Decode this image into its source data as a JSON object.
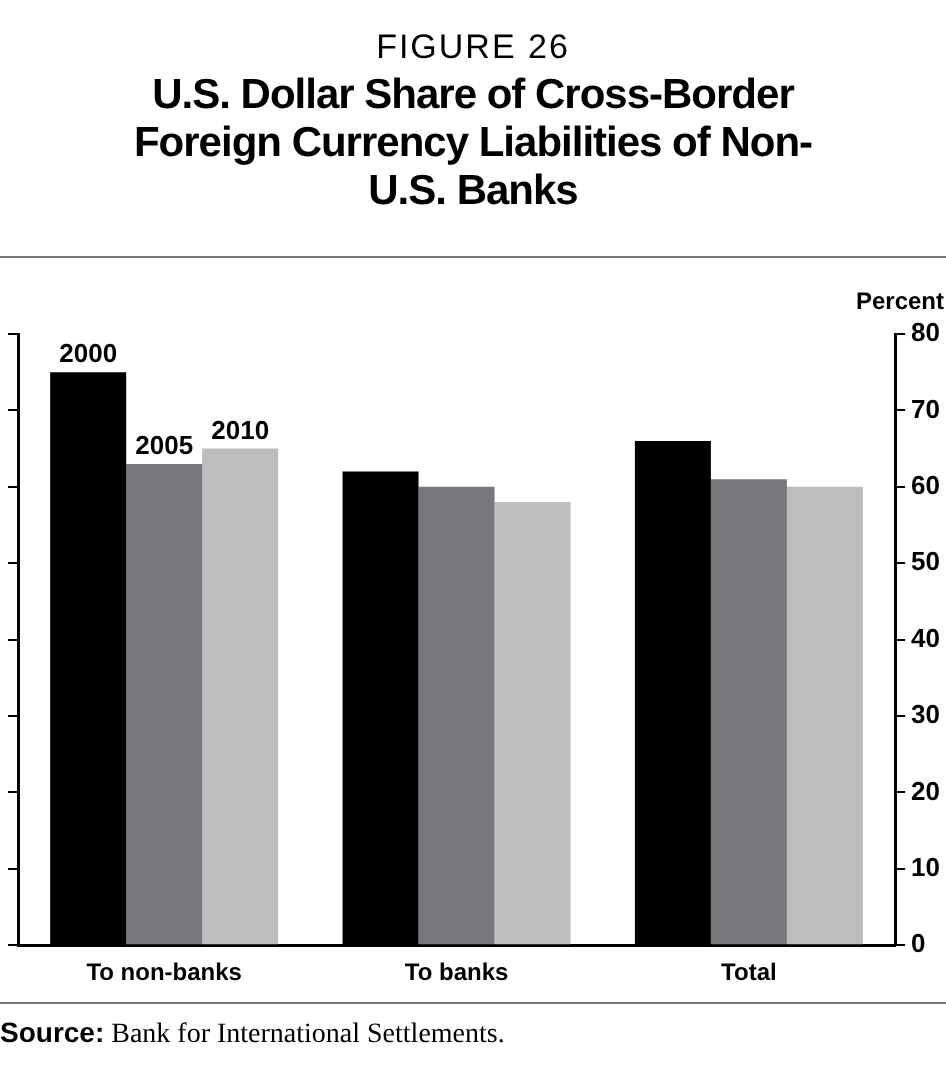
{
  "chart_data": {
    "type": "bar",
    "subtitle": "FIGURE 26",
    "title": "U.S. Dollar Share of Cross-Border Foreign Currency Liabilities of Non-U.S. Banks",
    "ylabel": "Percent",
    "categories": [
      "To non-banks",
      "To banks",
      "Total"
    ],
    "series": [
      {
        "name": "2000",
        "color": "#000000",
        "values": [
          75,
          62,
          66
        ]
      },
      {
        "name": "2005",
        "color": "#77787b",
        "values": [
          63,
          60,
          61
        ]
      },
      {
        "name": "2010",
        "color": "#bcbdbf",
        "values": [
          65,
          58,
          60
        ]
      }
    ],
    "ylim": [
      0,
      80
    ],
    "yticks": [
      0,
      10,
      20,
      30,
      40,
      50,
      60,
      70,
      80
    ],
    "grid": false,
    "legend": false,
    "annotations": [
      "Source: Bank for International Settlements."
    ]
  }
}
